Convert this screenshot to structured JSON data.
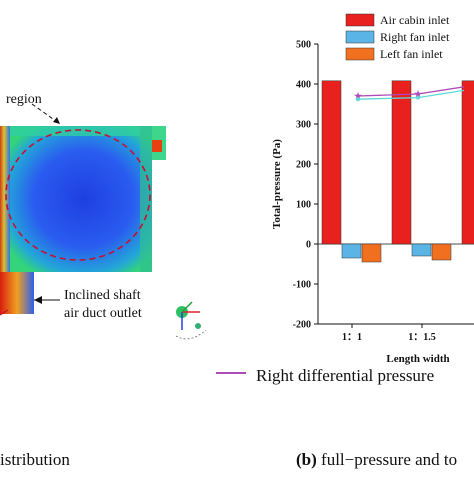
{
  "left_panel": {
    "region_label": "region",
    "outlet_label_line1": "Inclined shaft",
    "outlet_label_line2": "air duct outlet",
    "caption": "istribution"
  },
  "right_panel": {
    "caption_prefix": "(b)",
    "caption_rest": " full−pressure and to",
    "differential_legend": "Right differential pressure",
    "differential_color": "#b04ab8"
  },
  "chart_data": {
    "type": "bar",
    "ylabel": "Total-pressure  (Pa)",
    "xlabel": "Length width",
    "ylim": [
      -200,
      500
    ],
    "yticks": [
      -200,
      -100,
      0,
      100,
      200,
      300,
      400,
      500
    ],
    "categories": [
      "1：1",
      "1：1.5"
    ],
    "series": [
      {
        "name": "Air cabin inlet",
        "color": "#e8201e",
        "values": [
          408,
          408
        ]
      },
      {
        "name": "Right fan inlet",
        "color": "#5ab4e6",
        "values": [
          -35,
          -30
        ]
      },
      {
        "name": "Left fan inlet",
        "color": "#f07020",
        "values": [
          -45,
          -40
        ]
      }
    ],
    "lines": [
      {
        "color": "#b04ab8",
        "marker": "star",
        "values": [
          370,
          375
        ]
      },
      {
        "color": "#60d8d8",
        "marker": "circle",
        "values": [
          362,
          366
        ]
      }
    ],
    "legend_position": "top-right"
  }
}
